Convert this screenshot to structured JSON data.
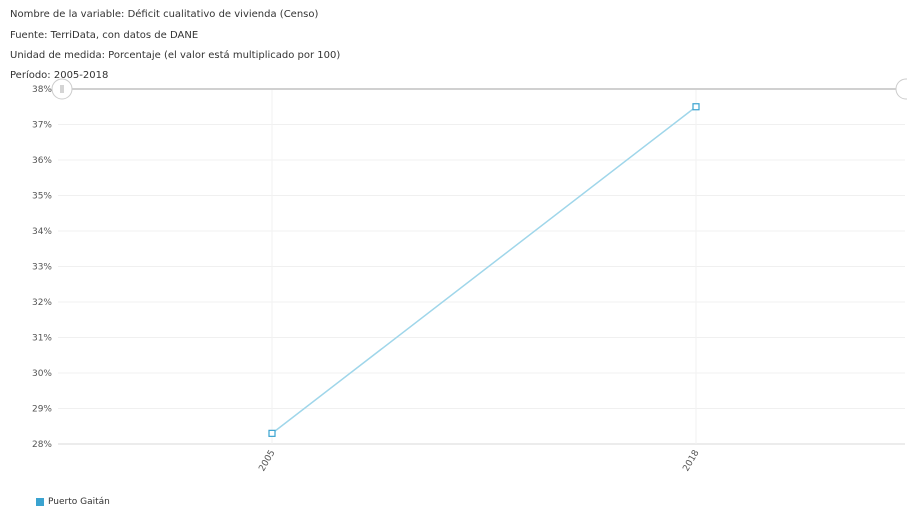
{
  "meta": {
    "variable": "Nombre de la variable: Déficit cualitativo de vivienda (Censo)",
    "source": "Fuente: TerriData, con datos de DANE",
    "unit": "Unidad de medida: Porcentaje (el valor está multiplicado por 100)",
    "period": "Período: 2005-2018"
  },
  "chart_data": {
    "type": "line",
    "categories": [
      "2005",
      "2018"
    ],
    "series": [
      {
        "name": "Puerto Gaitán",
        "values": [
          28.3,
          37.5
        ],
        "color": "#9fd6ea",
        "marker_color": "#3aa3d0"
      }
    ],
    "ylim": [
      28,
      38
    ],
    "y_ticks": [
      "28%",
      "29%",
      "30%",
      "31%",
      "32%",
      "33%",
      "34%",
      "35%",
      "36%",
      "37%",
      "38%"
    ],
    "grid": true,
    "legend_position": "bottom-left",
    "range_slider": true
  }
}
